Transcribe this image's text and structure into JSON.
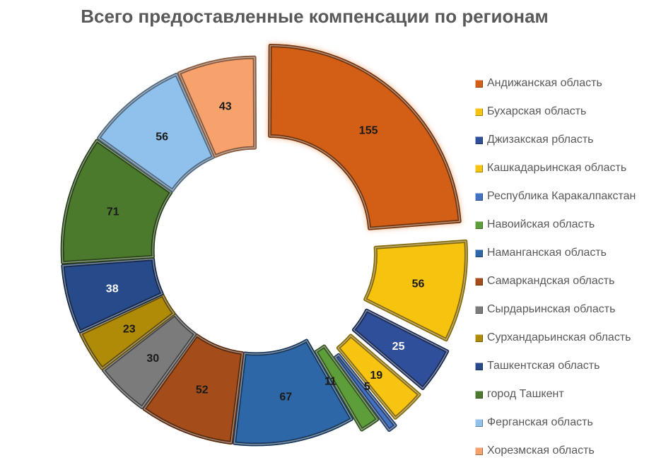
{
  "chart_data": {
    "type": "pie",
    "variant": "doughnut-exploded",
    "title": "Всего предоставленные компенсации по регионам",
    "categories": [
      "Андижанская область",
      "Бухарская область",
      "Джизакская рбласть",
      "Кашкадарьинская область",
      "Республика Каракалпакстан",
      "Навоийская область",
      "Наманганская область",
      "Самаркандская область",
      "Сырдарьинская область",
      "Сурхандарьинская область",
      "Ташкентская область",
      "город Ташкент",
      "Ферганская область",
      "Хорезмская область"
    ],
    "values": [
      155,
      56,
      25,
      19,
      5,
      11,
      67,
      52,
      30,
      23,
      38,
      71,
      56,
      43
    ],
    "data_labels": [
      "155",
      "56",
      "25",
      "19",
      "5",
      "11",
      "67",
      "52",
      "30",
      "23",
      "38",
      "71",
      "56",
      "43"
    ],
    "colors": [
      "#d35f16",
      "#f6c30e",
      "#2f4f9a",
      "#f7c412",
      "#4472c4",
      "#5e9e3a",
      "#2e67a8",
      "#a44c1a",
      "#7b7b7b",
      "#b08b07",
      "#264a8a",
      "#4b7a2c",
      "#8fc1ec",
      "#f7a16d"
    ],
    "label_colors": [
      "#1a1a1a",
      "#1a1a1a",
      "#ffffff",
      "#1a1a1a",
      "#1a1a1a",
      "#1a1a1a",
      "#1a1a1a",
      "#1a1a1a",
      "#1a1a1a",
      "#1a1a1a",
      "#ffffff",
      "#1a1a1a",
      "#1a1a1a",
      "#1a1a1a"
    ],
    "legend_position": "right"
  }
}
